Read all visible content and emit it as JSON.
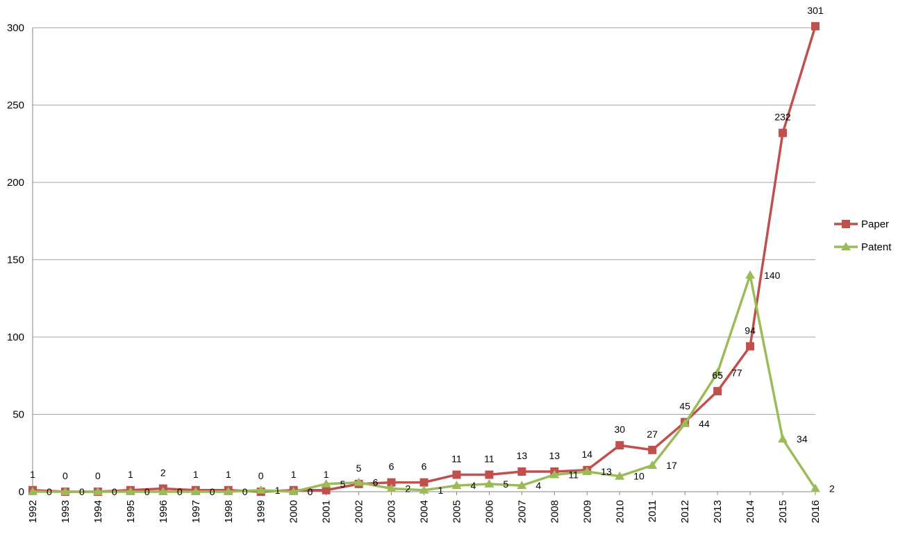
{
  "chart_data": {
    "type": "line",
    "title": "",
    "xlabel": "",
    "ylabel": "",
    "categories": [
      "1992",
      "1993",
      "1994",
      "1995",
      "1996",
      "1997",
      "1998",
      "1999",
      "2000",
      "2001",
      "2002",
      "2003",
      "2004",
      "2005",
      "2006",
      "2007",
      "2008",
      "2009",
      "2010",
      "2011",
      "2012",
      "2013",
      "2014",
      "2015",
      "2016"
    ],
    "ylim": [
      0,
      300
    ],
    "yticks": [
      0,
      50,
      100,
      150,
      200,
      250,
      300
    ],
    "ytick_labels": [
      "0",
      "50",
      "100",
      "150",
      "200",
      "250",
      "300"
    ],
    "grid": true,
    "legend": "right",
    "series": [
      {
        "name": "Paper",
        "color": "#C0504D",
        "marker": "square",
        "values": [
          1,
          0,
          0,
          1,
          2,
          1,
          1,
          0,
          1,
          1,
          5,
          6,
          6,
          11,
          11,
          13,
          13,
          14,
          30,
          27,
          45,
          65,
          94,
          232,
          301
        ]
      },
      {
        "name": "Patent",
        "color": "#9BBB59",
        "marker": "triangle",
        "values": [
          0,
          0,
          0,
          0,
          0,
          0,
          0,
          1,
          0,
          5,
          6,
          2,
          1,
          4,
          5,
          4,
          11,
          13,
          10,
          17,
          44,
          77,
          140,
          34,
          2
        ]
      }
    ]
  }
}
